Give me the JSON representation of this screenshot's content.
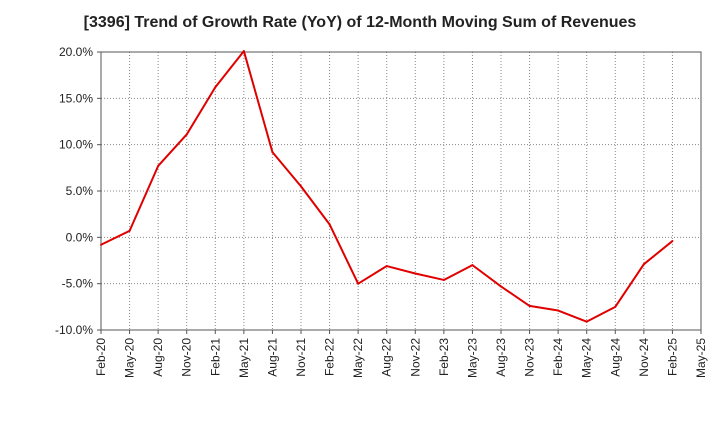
{
  "chart_data": {
    "type": "line",
    "title": "[3396]  Trend of Growth Rate (YoY) of 12-Month Moving Sum of Revenues",
    "xlabel": "",
    "ylabel": "",
    "ylim": [
      -10.0,
      20.0
    ],
    "yticks": [
      -10.0,
      -5.0,
      0.0,
      5.0,
      10.0,
      15.0,
      20.0
    ],
    "ytick_labels": [
      "-10.0%",
      "-5.0%",
      "0.0%",
      "5.0%",
      "10.0%",
      "15.0%",
      "20.0%"
    ],
    "categories": [
      "Feb-20",
      "May-20",
      "Aug-20",
      "Nov-20",
      "Feb-21",
      "May-21",
      "Aug-21",
      "Nov-21",
      "Feb-22",
      "May-22",
      "Aug-22",
      "Nov-22",
      "Feb-23",
      "May-23",
      "Aug-23",
      "Nov-23",
      "Feb-24",
      "May-24",
      "Aug-24",
      "Nov-24",
      "Feb-25",
      "May-25"
    ],
    "series": [
      {
        "color": "#e00000",
        "values": [
          -0.8,
          0.7,
          7.7,
          11.1,
          16.2,
          20.1,
          9.2,
          5.5,
          1.4,
          -5.0,
          -3.1,
          -3.9,
          -4.6,
          -3.0,
          -5.3,
          -7.4,
          -7.9,
          -9.1,
          -7.5,
          -2.9,
          -0.4,
          null
        ]
      }
    ],
    "grid": true,
    "grid_style": "dotted",
    "legend": "none"
  }
}
